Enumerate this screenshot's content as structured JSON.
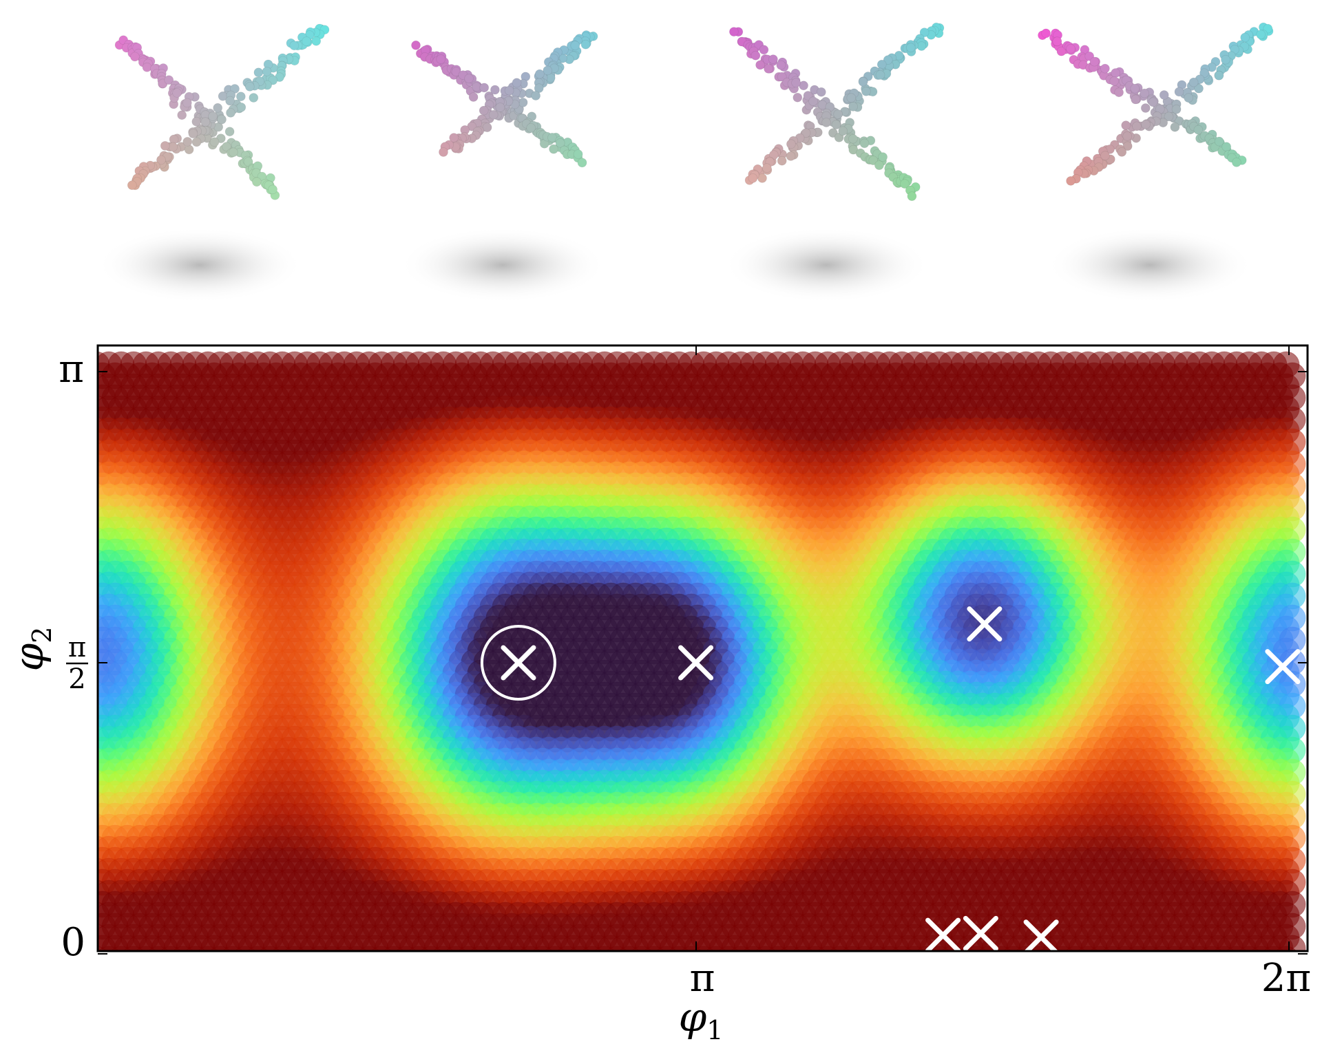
{
  "renders": [
    {
      "name": "point-cloud-airplane-1",
      "colors": [
        "#ff4fd8",
        "#5fe3e8",
        "#f19a8e",
        "#92f0b2"
      ]
    },
    {
      "name": "point-cloud-airplane-2",
      "colors": [
        "#e43fd0",
        "#5fe3e8",
        "#f59a9a",
        "#86e9a6"
      ]
    },
    {
      "name": "point-cloud-airplane-3",
      "colors": [
        "#e43fd0",
        "#5fe3e8",
        "#f7a6a0",
        "#7fe39a"
      ]
    },
    {
      "name": "point-cloud-airplane-4",
      "colors": [
        "#ff3fe0",
        "#5fe3e8",
        "#f28f86",
        "#7fe3a6"
      ]
    }
  ],
  "chart_data": {
    "type": "heatmap",
    "xlabel": "φ1",
    "ylabel": "φ2",
    "xlim": [
      0,
      6.2832
    ],
    "ylim": [
      0,
      3.1416
    ],
    "xticks": [
      {
        "value": 3.1416,
        "label": "π"
      },
      {
        "value": 6.2832,
        "label": "2π"
      }
    ],
    "yticks": [
      {
        "value": 0,
        "label": "0"
      },
      {
        "value": 1.5708,
        "label": "π/2"
      },
      {
        "value": 3.1416,
        "label": "π"
      }
    ],
    "grid": false,
    "colormap": [
      "#30123b",
      "#4145ab",
      "#4675ed",
      "#39a2fc",
      "#1bcfd4",
      "#24eca6",
      "#61fc6c",
      "#a4fc3b",
      "#d1e834",
      "#f3c63a",
      "#fe9b2d",
      "#f36315",
      "#d93806",
      "#b11901",
      "#7a0403"
    ],
    "minima": [
      {
        "x": 2.2,
        "y": 1.5708,
        "highlight": true
      },
      {
        "x": 3.14,
        "y": 1.5708,
        "highlight": false
      },
      {
        "x": 4.67,
        "y": 1.78,
        "highlight": false
      },
      {
        "x": 6.25,
        "y": 1.55,
        "highlight": false
      },
      {
        "x": 4.45,
        "y": 0.1,
        "highlight": false
      },
      {
        "x": 4.65,
        "y": 0.11,
        "highlight": false
      },
      {
        "x": 4.97,
        "y": 0.09,
        "highlight": false
      }
    ]
  }
}
